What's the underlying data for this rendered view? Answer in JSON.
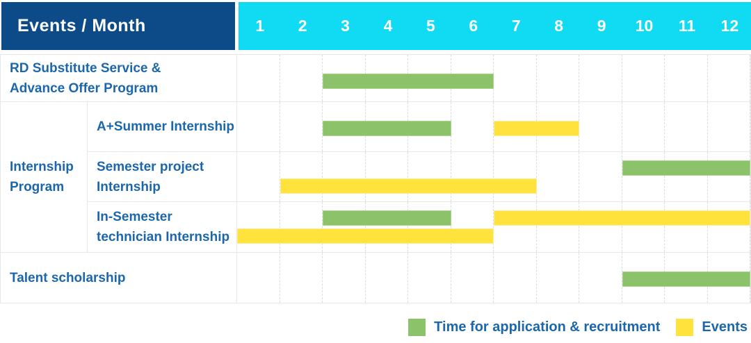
{
  "header": {
    "title": "Events / Month"
  },
  "chart_data": {
    "type": "bar",
    "subtype": "gantt",
    "x_label": "Month",
    "x_range": [
      1,
      12
    ],
    "months": [
      "1",
      "2",
      "3",
      "4",
      "5",
      "6",
      "7",
      "8",
      "9",
      "10",
      "11",
      "12"
    ],
    "grid": "dashed-vertical",
    "legend_position": "bottom-right",
    "legend": [
      {
        "key": "recruitment",
        "label": "Time for application & recruitment",
        "color": "#8CC269"
      },
      {
        "key": "event",
        "label": "Events",
        "color": "#FFE23C"
      }
    ],
    "rows": [
      {
        "label": "RD Substitute Service & Advance Offer Program",
        "lines": [
          [
            {
              "kind": "recruitment",
              "start_month": 3,
              "end_month": 6
            }
          ]
        ]
      },
      {
        "group": "Internship Program",
        "children": [
          {
            "label": "A+Summer Internship",
            "lines": [
              [
                {
                  "kind": "recruitment",
                  "start_month": 3,
                  "end_month": 5
                },
                {
                  "kind": "event",
                  "start_month": 7,
                  "end_month": 8
                }
              ]
            ]
          },
          {
            "label": "Semester project Internship",
            "lines": [
              [
                {
                  "kind": "recruitment",
                  "start_month": 10,
                  "end_month": 12
                }
              ],
              [
                {
                  "kind": "event",
                  "start_month": 2,
                  "end_month": 7
                }
              ]
            ]
          },
          {
            "label": "In-Semester technician Internship",
            "lines": [
              [
                {
                  "kind": "recruitment",
                  "start_month": 3,
                  "end_month": 5
                },
                {
                  "kind": "event",
                  "start_month": 7,
                  "end_month": 12
                }
              ],
              [
                {
                  "kind": "event",
                  "start_month": 1,
                  "end_month": 6
                }
              ]
            ]
          }
        ]
      },
      {
        "label": "Talent scholarship",
        "lines": [
          [
            {
              "kind": "recruitment",
              "start_month": 10,
              "end_month": 12
            }
          ]
        ]
      }
    ]
  },
  "colors": {
    "header_bg": "#0C4B87",
    "months_bg": "#10DBF2",
    "label_text": "#1C67AC",
    "recruitment": "#8CC269",
    "event": "#FFE23C",
    "grid_solid": "#E7E7E7",
    "grid_dashed": "#DCDCDC"
  }
}
